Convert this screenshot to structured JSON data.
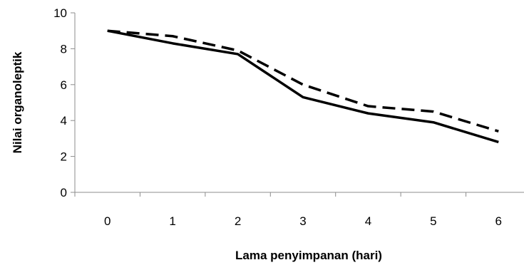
{
  "chart_data": {
    "type": "line",
    "title": "",
    "xlabel": "Lama penyimpanan (hari)",
    "ylabel": "Nilai organoleptik",
    "categories": [
      "0",
      "1",
      "2",
      "3",
      "4",
      "5",
      "6"
    ],
    "x": [
      0,
      1,
      2,
      3,
      4,
      5,
      6
    ],
    "ylim": [
      0,
      10
    ],
    "yticks": [
      0,
      2,
      4,
      6,
      8,
      10
    ],
    "grid": false,
    "legend": "none",
    "series": [
      {
        "style": "solid",
        "color": "#000000",
        "values": [
          9.0,
          8.3,
          7.7,
          5.3,
          4.4,
          3.9,
          2.8
        ]
      },
      {
        "style": "dashed",
        "color": "#000000",
        "values": [
          9.0,
          8.7,
          7.9,
          6.0,
          4.8,
          4.5,
          3.4
        ]
      }
    ]
  }
}
